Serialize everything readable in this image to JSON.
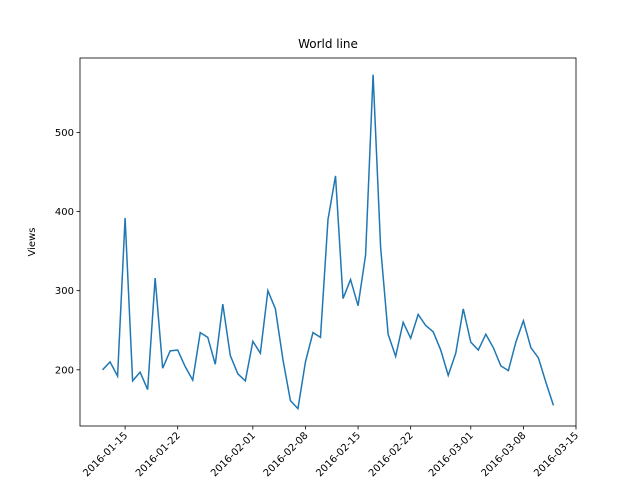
{
  "chart_data": {
    "type": "line",
    "title": "World line",
    "y_label": "Views",
    "x": [
      "2016-01-12",
      "2016-01-13",
      "2016-01-14",
      "2016-01-15",
      "2016-01-16",
      "2016-01-17",
      "2016-01-18",
      "2016-01-19",
      "2016-01-20",
      "2016-01-21",
      "2016-01-22",
      "2016-01-23",
      "2016-01-24",
      "2016-01-25",
      "2016-01-26",
      "2016-01-27",
      "2016-01-28",
      "2016-01-29",
      "2016-01-30",
      "2016-01-31",
      "2016-02-01",
      "2016-02-02",
      "2016-02-03",
      "2016-02-04",
      "2016-02-05",
      "2016-02-06",
      "2016-02-07",
      "2016-02-08",
      "2016-02-09",
      "2016-02-10",
      "2016-02-11",
      "2016-02-12",
      "2016-02-13",
      "2016-02-14",
      "2016-02-15",
      "2016-02-16",
      "2016-02-17",
      "2016-02-18",
      "2016-02-19",
      "2016-02-20",
      "2016-02-21",
      "2016-02-22",
      "2016-02-23",
      "2016-02-24",
      "2016-02-25",
      "2016-02-26",
      "2016-02-27",
      "2016-02-28",
      "2016-02-29",
      "2016-03-01",
      "2016-03-02",
      "2016-03-03",
      "2016-03-04",
      "2016-03-05",
      "2016-03-06",
      "2016-03-07",
      "2016-03-08",
      "2016-03-09",
      "2016-03-10",
      "2016-03-11",
      "2016-03-12"
    ],
    "series": [
      {
        "name": "Views",
        "color": "#1f77b4",
        "values": [
          200,
          210,
          192,
          392,
          186,
          197,
          175,
          316,
          202,
          224,
          225,
          204,
          187,
          247,
          241,
          207,
          283,
          218,
          195,
          186,
          236,
          221,
          300,
          277,
          213,
          161,
          151,
          210,
          247,
          241,
          390,
          445,
          290,
          314,
          281,
          345,
          573,
          355,
          245,
          217,
          260,
          240,
          270,
          256,
          248,
          225,
          193,
          221,
          277,
          235,
          225,
          245,
          228,
          205,
          199,
          235,
          262,
          228,
          215,
          184,
          155
        ]
      }
    ],
    "xlim": [
      "2016-01-09",
      "2016-03-15"
    ],
    "xticks": [
      "2016-01-15",
      "2016-01-22",
      "2016-02-01",
      "2016-02-08",
      "2016-02-15",
      "2016-02-22",
      "2016-03-01",
      "2016-03-08",
      "2016-03-15"
    ],
    "ylim": [
      129,
      594
    ],
    "yticks": [
      200,
      300,
      400,
      500
    ]
  }
}
